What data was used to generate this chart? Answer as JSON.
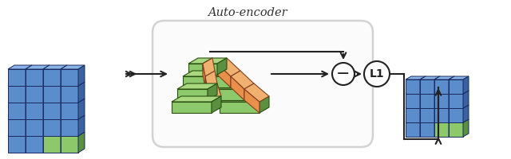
{
  "title": "Auto-encoder",
  "blue_face": "#5b8ccc",
  "blue_top": "#8ab4e8",
  "blue_side": "#3a62a0",
  "green_face": "#8dc86a",
  "green_top": "#aad880",
  "green_side": "#5a9040",
  "orange_face": "#e8904a",
  "orange_top": "#f0b070",
  "orange_side": "#b05818",
  "bg_color": "#ffffff",
  "arrow_color": "#222222",
  "figsize": [
    6.4,
    2.0
  ],
  "dpi": 100
}
